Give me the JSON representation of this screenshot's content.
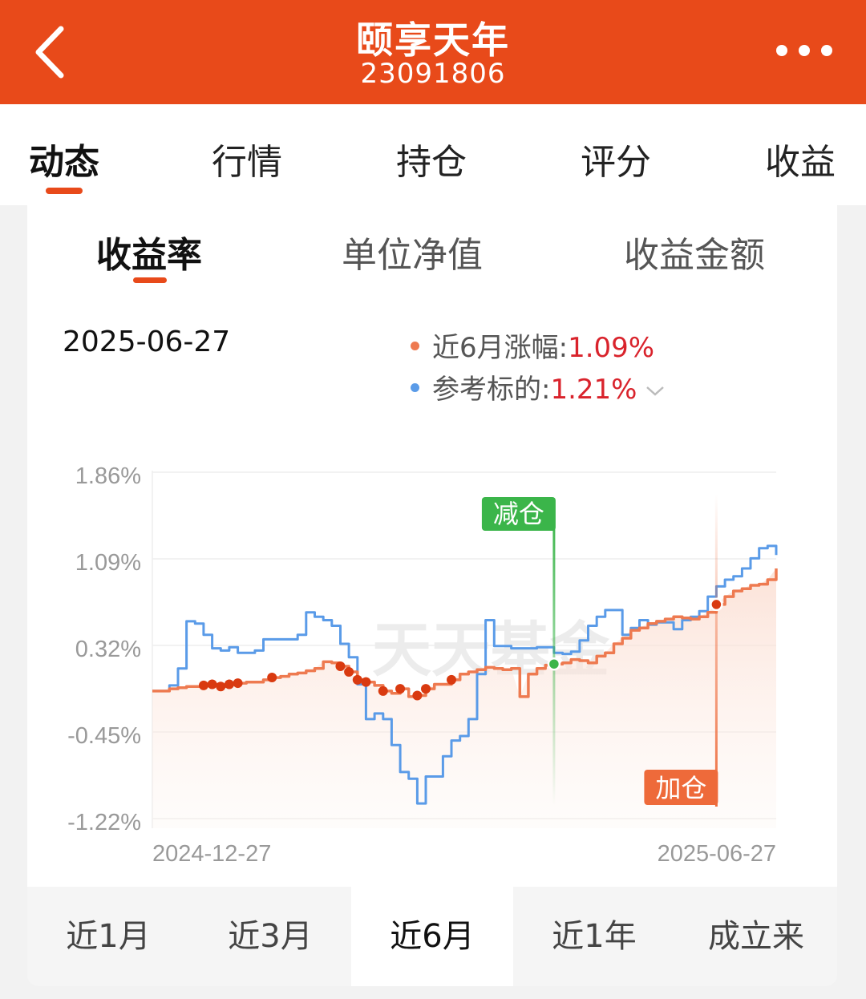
{
  "header": {
    "title": "颐享天年",
    "subtitle": "23091806"
  },
  "main_tabs": [
    {
      "label": "动态",
      "active": true
    },
    {
      "label": "行情",
      "active": false
    },
    {
      "label": "持仓",
      "active": false
    },
    {
      "label": "评分",
      "active": false
    },
    {
      "label": "收益",
      "active": false
    }
  ],
  "sub_tabs": [
    {
      "label": "收益率",
      "active": true
    },
    {
      "label": "单位净值",
      "active": false
    },
    {
      "label": "收益金额",
      "active": false
    }
  ],
  "info": {
    "date": "2025-06-27",
    "legend_fund_label": "近6月涨幅:",
    "legend_fund_value": "1.09%",
    "legend_benchmark_label": "参考标的:",
    "legend_benchmark_value": "1.21%"
  },
  "colors": {
    "brand": "#e84a1a",
    "fund_line": "#ee7a50",
    "benchmark_line": "#5a9be8",
    "reduce_marker": "#3bb54a",
    "add_marker": "#ee6a3a",
    "trade_dot": "#d93a10",
    "positive_text": "#d9232c"
  },
  "watermark": "天天基金",
  "chart_data": {
    "type": "line",
    "y_ticks": [
      "1.86%",
      "1.09%",
      "0.32%",
      "-0.45%",
      "-1.22%"
    ],
    "ylim": [
      -1.22,
      1.86
    ],
    "x_start_label": "2024-12-27",
    "x_end_label": "2025-06-27",
    "series": [
      {
        "name": "近6月涨幅",
        "values": [
          0.0,
          0.0,
          0.02,
          0.03,
          0.04,
          0.04,
          0.05,
          0.06,
          0.04,
          0.06,
          0.07,
          0.08,
          0.08,
          0.1,
          0.12,
          0.13,
          0.15,
          0.16,
          0.18,
          0.2,
          0.26,
          0.25,
          0.22,
          0.17,
          0.1,
          0.08,
          0.05,
          0.0,
          -0.02,
          0.02,
          -0.05,
          -0.04,
          0.02,
          0.06,
          0.06,
          0.1,
          0.15,
          0.17,
          0.19,
          0.21,
          0.2,
          0.19,
          0.2,
          -0.05,
          0.15,
          0.2,
          0.23,
          0.24,
          0.25,
          0.28,
          0.27,
          0.25,
          0.31,
          0.34,
          0.42,
          0.47,
          0.54,
          0.56,
          0.6,
          0.62,
          0.64,
          0.66,
          0.65,
          0.64,
          0.66,
          0.7,
          0.77,
          0.84,
          0.89,
          0.91,
          0.94,
          0.95,
          0.99,
          1.09
        ]
      },
      {
        "name": "参考标的",
        "values": [
          0.0,
          0.0,
          0.05,
          0.2,
          0.62,
          0.6,
          0.5,
          0.38,
          0.36,
          0.39,
          0.34,
          0.34,
          0.36,
          0.46,
          0.46,
          0.46,
          0.46,
          0.5,
          0.7,
          0.66,
          0.63,
          0.58,
          0.42,
          0.3,
          0.06,
          -0.25,
          -0.2,
          -0.25,
          -0.48,
          -0.72,
          -0.78,
          -1.0,
          -0.76,
          -0.76,
          -0.58,
          -0.44,
          -0.4,
          -0.25,
          0.15,
          0.63,
          0.4,
          0.4,
          0.38,
          0.38,
          0.38,
          0.39,
          0.39,
          0.34,
          0.33,
          0.35,
          0.45,
          0.58,
          0.66,
          0.72,
          0.72,
          0.5,
          0.56,
          0.63,
          0.59,
          0.61,
          0.61,
          0.55,
          0.63,
          0.66,
          0.71,
          0.84,
          0.93,
          0.99,
          1.02,
          1.09,
          1.18,
          1.27,
          1.29,
          1.21
        ]
      }
    ],
    "trade_dots": [
      {
        "index": 6,
        "series": "近6月涨幅",
        "type": "buy"
      },
      {
        "index": 7,
        "series": "近6月涨幅",
        "type": "buy"
      },
      {
        "index": 8,
        "series": "近6月涨幅",
        "type": "buy"
      },
      {
        "index": 9,
        "series": "近6月涨幅",
        "type": "buy"
      },
      {
        "index": 10,
        "series": "近6月涨幅",
        "type": "buy"
      },
      {
        "index": 14,
        "series": "近6月涨幅",
        "type": "buy"
      },
      {
        "index": 22,
        "series": "近6月涨幅",
        "type": "buy"
      },
      {
        "index": 23,
        "series": "近6月涨幅",
        "type": "buy"
      },
      {
        "index": 24,
        "series": "近6月涨幅",
        "type": "buy"
      },
      {
        "index": 25,
        "series": "近6月涨幅",
        "type": "buy"
      },
      {
        "index": 27,
        "series": "近6月涨幅",
        "type": "buy"
      },
      {
        "index": 29,
        "series": "近6月涨幅",
        "type": "buy"
      },
      {
        "index": 31,
        "series": "近6月涨幅",
        "type": "buy"
      },
      {
        "index": 32,
        "series": "近6月涨幅",
        "type": "buy"
      },
      {
        "index": 35,
        "series": "近6月涨幅",
        "type": "buy"
      }
    ],
    "markers": [
      {
        "label": "减仓",
        "index": 47,
        "type": "reduce"
      },
      {
        "label": "加仓",
        "index": 66,
        "type": "add"
      }
    ]
  },
  "range_tabs": [
    {
      "label": "近1月",
      "active": false
    },
    {
      "label": "近3月",
      "active": false
    },
    {
      "label": "近6月",
      "active": true
    },
    {
      "label": "近1年",
      "active": false
    },
    {
      "label": "成立来",
      "active": false
    }
  ]
}
